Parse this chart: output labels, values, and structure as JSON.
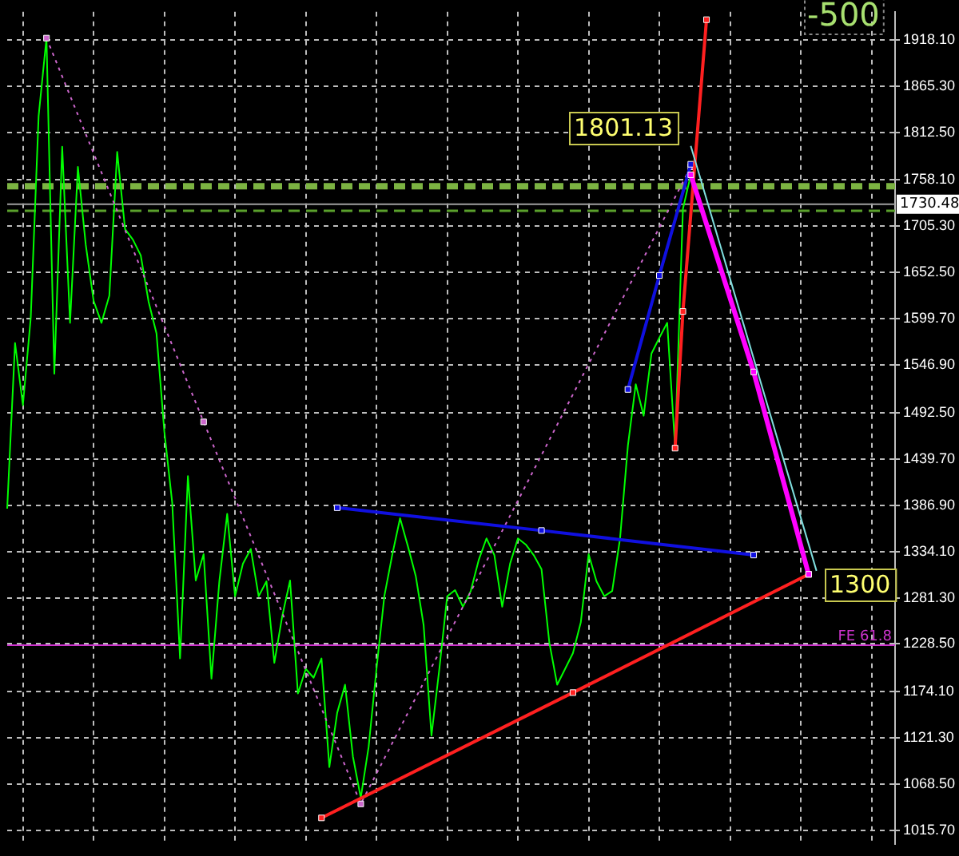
{
  "chart_data": {
    "type": "line",
    "categories": [
      null,
      null,
      null,
      null,
      null,
      null,
      null,
      null,
      null,
      null,
      null,
      null,
      null,
      null,
      null,
      null,
      null,
      null,
      null,
      null,
      null,
      null,
      null,
      null,
      null,
      null,
      null,
      null,
      null,
      null,
      null,
      null,
      null,
      null,
      null,
      null,
      null,
      null,
      null,
      null,
      null,
      null,
      null,
      null,
      null,
      null,
      null,
      null,
      null,
      null,
      null,
      null,
      null,
      null,
      null,
      null,
      null,
      null,
      null,
      null,
      null,
      null,
      null,
      null,
      null,
      null,
      null,
      null,
      null,
      null,
      null,
      null,
      null,
      null,
      null,
      null,
      null,
      null,
      null,
      null,
      null,
      null,
      null,
      null,
      null,
      null,
      null,
      null,
      null,
      null,
      null,
      null,
      null,
      null,
      null,
      null,
      null,
      null,
      null,
      null,
      null,
      null,
      null,
      null,
      null,
      null,
      null,
      null,
      null,
      null,
      null,
      null,
      null,
      null
    ],
    "series": [
      {
        "color": "#00ff00",
        "marker": "none",
        "values": [
          1383,
          1572,
          1501,
          1601,
          1831,
          1920,
          1537,
          1796,
          1595,
          1773,
          1684,
          1620,
          1595,
          1626,
          1790,
          1702,
          1690,
          1672,
          1619,
          1583,
          1471,
          1390,
          1212,
          1420,
          1301,
          1331,
          1189,
          1300,
          1377,
          1283,
          1320,
          1337,
          1283,
          1300,
          1207,
          1260,
          1301,
          1172,
          1200,
          1190,
          1212,
          1088,
          1150,
          1182,
          1100,
          1053,
          1111,
          1200,
          1283,
          1330,
          1372,
          1340,
          1306,
          1250,
          1124,
          1200,
          1283,
          1290,
          1271,
          1289,
          1324,
          1349,
          1330,
          1271,
          1320,
          1349,
          1342,
          1330,
          1314,
          1230,
          1182,
          1200,
          1218,
          1253,
          1331,
          1300,
          1283,
          1289,
          1349,
          1455,
          1525,
          1489,
          1560,
          1578,
          1595,
          1454,
          1725,
          1764,
          null,
          null,
          null,
          null,
          null,
          null,
          null,
          null,
          null,
          null,
          null,
          null,
          null,
          null,
          null,
          null,
          null,
          null,
          null,
          null,
          null,
          null,
          null,
          null,
          null,
          null
        ]
      },
      {
        "color": "#cc66cc",
        "marker": "square",
        "line_style": "dotted",
        "values": [
          null,
          null,
          null,
          null,
          null,
          1920,
          null,
          null,
          null,
          null,
          null,
          null,
          null,
          null,
          null,
          null,
          null,
          null,
          null,
          null,
          null,
          null,
          null,
          null,
          null,
          1482,
          null,
          null,
          null,
          null,
          null,
          null,
          null,
          null,
          null,
          null,
          null,
          null,
          null,
          null,
          null,
          null,
          null,
          null,
          null,
          1046,
          null,
          null,
          null,
          null,
          null,
          null,
          null,
          null,
          null,
          null,
          null,
          null,
          null,
          null,
          null,
          null,
          null,
          null,
          null,
          null,
          null,
          null,
          null,
          null,
          null,
          null,
          null,
          null,
          null,
          null,
          null,
          null,
          null,
          null,
          null,
          null,
          null,
          null,
          null,
          null,
          null,
          1773,
          null,
          null,
          null,
          null,
          null,
          null,
          null,
          null,
          null,
          null,
          null,
          null,
          null,
          null,
          null,
          null,
          null,
          null,
          null,
          null,
          null,
          null,
          null,
          null,
          null,
          null
        ]
      },
      {
        "color": "#1010e0",
        "marker": "square",
        "values": [
          null,
          null,
          null,
          null,
          null,
          null,
          null,
          null,
          null,
          null,
          null,
          null,
          null,
          null,
          null,
          null,
          null,
          null,
          null,
          null,
          null,
          null,
          null,
          null,
          null,
          null,
          null,
          null,
          null,
          null,
          null,
          null,
          null,
          null,
          null,
          null,
          null,
          null,
          null,
          null,
          null,
          null,
          1384,
          null,
          null,
          null,
          null,
          null,
          null,
          null,
          null,
          null,
          null,
          null,
          null,
          null,
          null,
          null,
          null,
          null,
          null,
          null,
          null,
          null,
          null,
          null,
          null,
          null,
          1358,
          null,
          null,
          null,
          null,
          null,
          null,
          null,
          null,
          null,
          null,
          null,
          null,
          null,
          null,
          null,
          null,
          null,
          null,
          null,
          null,
          null,
          null,
          null,
          null,
          null,
          null,
          1330,
          null,
          null,
          null,
          null,
          null,
          null,
          null,
          null,
          null,
          null,
          null,
          null,
          null,
          null,
          null,
          null,
          null,
          null
        ]
      },
      {
        "color": "#1010e0",
        "marker": "square",
        "values": [
          null,
          null,
          null,
          null,
          null,
          null,
          null,
          null,
          null,
          null,
          null,
          null,
          null,
          null,
          null,
          null,
          null,
          null,
          null,
          null,
          null,
          null,
          null,
          null,
          null,
          null,
          null,
          null,
          null,
          null,
          null,
          null,
          null,
          null,
          null,
          null,
          null,
          null,
          null,
          null,
          null,
          null,
          null,
          null,
          null,
          null,
          null,
          null,
          null,
          null,
          null,
          null,
          null,
          null,
          null,
          null,
          null,
          null,
          null,
          null,
          null,
          null,
          null,
          null,
          null,
          null,
          null,
          null,
          null,
          null,
          null,
          null,
          null,
          null,
          null,
          null,
          null,
          null,
          null,
          1519,
          null,
          null,
          null,
          1649,
          null,
          null,
          null,
          1776,
          null,
          null,
          null,
          null,
          null,
          null,
          null,
          null,
          null,
          null,
          null,
          null,
          null,
          null,
          null,
          null,
          null,
          null,
          null,
          null,
          null,
          null,
          null,
          null,
          null,
          null
        ]
      },
      {
        "color": "#ff2020",
        "marker": "square",
        "values": [
          null,
          null,
          null,
          null,
          null,
          null,
          null,
          null,
          null,
          null,
          null,
          null,
          null,
          null,
          null,
          null,
          null,
          null,
          null,
          null,
          null,
          null,
          null,
          null,
          null,
          null,
          null,
          null,
          null,
          null,
          null,
          null,
          null,
          null,
          null,
          null,
          null,
          null,
          null,
          null,
          1030,
          null,
          null,
          null,
          null,
          null,
          null,
          null,
          null,
          null,
          null,
          null,
          null,
          null,
          null,
          null,
          null,
          null,
          null,
          null,
          null,
          null,
          null,
          null,
          null,
          null,
          null,
          null,
          null,
          null,
          null,
          null,
          1173,
          null,
          null,
          null,
          null,
          null,
          null,
          null,
          null,
          null,
          null,
          null,
          null,
          null,
          null,
          null,
          null,
          null,
          null,
          null,
          null,
          null,
          null,
          null,
          null,
          null,
          null,
          null,
          null,
          null,
          1308,
          null,
          null,
          null,
          null,
          null,
          null,
          null,
          null,
          null,
          null,
          null
        ]
      },
      {
        "color": "#ff2020",
        "marker": "square",
        "values": [
          null,
          null,
          null,
          null,
          null,
          null,
          null,
          null,
          null,
          null,
          null,
          null,
          null,
          null,
          null,
          null,
          null,
          null,
          null,
          null,
          null,
          null,
          null,
          null,
          null,
          null,
          null,
          null,
          null,
          null,
          null,
          null,
          null,
          null,
          null,
          null,
          null,
          null,
          null,
          null,
          null,
          null,
          null,
          null,
          null,
          null,
          null,
          null,
          null,
          null,
          null,
          null,
          null,
          null,
          null,
          null,
          null,
          null,
          null,
          null,
          null,
          null,
          null,
          null,
          null,
          null,
          null,
          null,
          null,
          null,
          null,
          null,
          null,
          null,
          null,
          null,
          null,
          null,
          null,
          null,
          null,
          null,
          null,
          null,
          null,
          1452,
          1608,
          null,
          null,
          1941,
          null,
          null,
          null,
          null,
          null,
          null,
          null,
          null,
          null,
          null,
          null,
          null,
          null,
          null,
          null,
          null,
          null,
          null,
          null,
          null,
          null,
          null,
          null,
          null
        ]
      },
      {
        "color": "#ff00ff",
        "marker": "square",
        "values": [
          null,
          null,
          null,
          null,
          null,
          null,
          null,
          null,
          null,
          null,
          null,
          null,
          null,
          null,
          null,
          null,
          null,
          null,
          null,
          null,
          null,
          null,
          null,
          null,
          null,
          null,
          null,
          null,
          null,
          null,
          null,
          null,
          null,
          null,
          null,
          null,
          null,
          null,
          null,
          null,
          null,
          null,
          null,
          null,
          null,
          null,
          null,
          null,
          null,
          null,
          null,
          null,
          null,
          null,
          null,
          null,
          null,
          null,
          null,
          null,
          null,
          null,
          null,
          null,
          null,
          null,
          null,
          null,
          null,
          null,
          null,
          null,
          null,
          null,
          null,
          null,
          null,
          null,
          null,
          null,
          null,
          null,
          null,
          null,
          null,
          null,
          null,
          1764,
          null,
          null,
          null,
          null,
          null,
          null,
          null,
          1539,
          null,
          null,
          null,
          null,
          null,
          null,
          1308,
          null,
          null,
          null,
          null,
          null,
          null,
          null,
          null,
          null,
          null,
          null
        ]
      },
      {
        "color": "#80e0e0",
        "marker": "none",
        "values": [
          null,
          null,
          null,
          null,
          null,
          null,
          null,
          null,
          null,
          null,
          null,
          null,
          null,
          null,
          null,
          null,
          null,
          null,
          null,
          null,
          null,
          null,
          null,
          null,
          null,
          null,
          null,
          null,
          null,
          null,
          null,
          null,
          null,
          null,
          null,
          null,
          null,
          null,
          null,
          null,
          null,
          null,
          null,
          null,
          null,
          null,
          null,
          null,
          null,
          null,
          null,
          null,
          null,
          null,
          null,
          null,
          null,
          null,
          null,
          null,
          null,
          null,
          null,
          null,
          null,
          null,
          null,
          null,
          null,
          null,
          null,
          null,
          null,
          null,
          null,
          null,
          null,
          null,
          null,
          null,
          null,
          null,
          null,
          null,
          null,
          null,
          null,
          1797,
          null,
          null,
          null,
          null,
          null,
          null,
          null,
          null,
          null,
          null,
          null,
          null,
          null,
          null,
          null,
          1312,
          null,
          null,
          null,
          null,
          null,
          null,
          null,
          null,
          null,
          null
        ]
      }
    ],
    "ylim": [
      1000,
      1950
    ],
    "yticks": [
      {
        "value": 1015.7,
        "label": "1015.70"
      },
      {
        "value": 1068.5,
        "label": "1068.50"
      },
      {
        "value": 1121.3,
        "label": "1121.30"
      },
      {
        "value": 1174.1,
        "label": "1174.10"
      },
      {
        "value": 1228.5,
        "label": "1228.50"
      },
      {
        "value": 1281.3,
        "label": "1281.30"
      },
      {
        "value": 1334.1,
        "label": "1334.10"
      },
      {
        "value": 1386.9,
        "label": "1386.90"
      },
      {
        "value": 1439.7,
        "label": "1439.70"
      },
      {
        "value": 1492.5,
        "label": "1492.50"
      },
      {
        "value": 1546.9,
        "label": "1546.90"
      },
      {
        "value": 1599.7,
        "label": "1599.70"
      },
      {
        "value": 1652.5,
        "label": "1652.50"
      },
      {
        "value": 1705.3,
        "label": "1705.30"
      },
      {
        "value": 1758.1,
        "label": "1758.10"
      },
      {
        "value": 1812.5,
        "label": "1812.50"
      },
      {
        "value": 1865.3,
        "label": "1865.30"
      },
      {
        "value": 1918.1,
        "label": "1918.10"
      }
    ],
    "ref_lines": [
      {
        "axis": "y",
        "value": 1751,
        "color": "#7cb342",
        "line_style": "dashed"
      },
      {
        "axis": "y",
        "value": 1730.48,
        "label": "1730.48",
        "color": "#a0a0a0",
        "line_style": "solid"
      },
      {
        "axis": "y",
        "value": 1723,
        "color": "#5aa02c",
        "line_style": "dashed"
      },
      {
        "axis": "y",
        "value": 1227,
        "label": "FE 61.8",
        "color": "#cc33cc",
        "line_style": "solid"
      }
    ],
    "annotations": [
      "1801.13",
      "1300",
      "-500"
    ],
    "grid": true,
    "legend": false,
    "tick_labels": "y"
  }
}
